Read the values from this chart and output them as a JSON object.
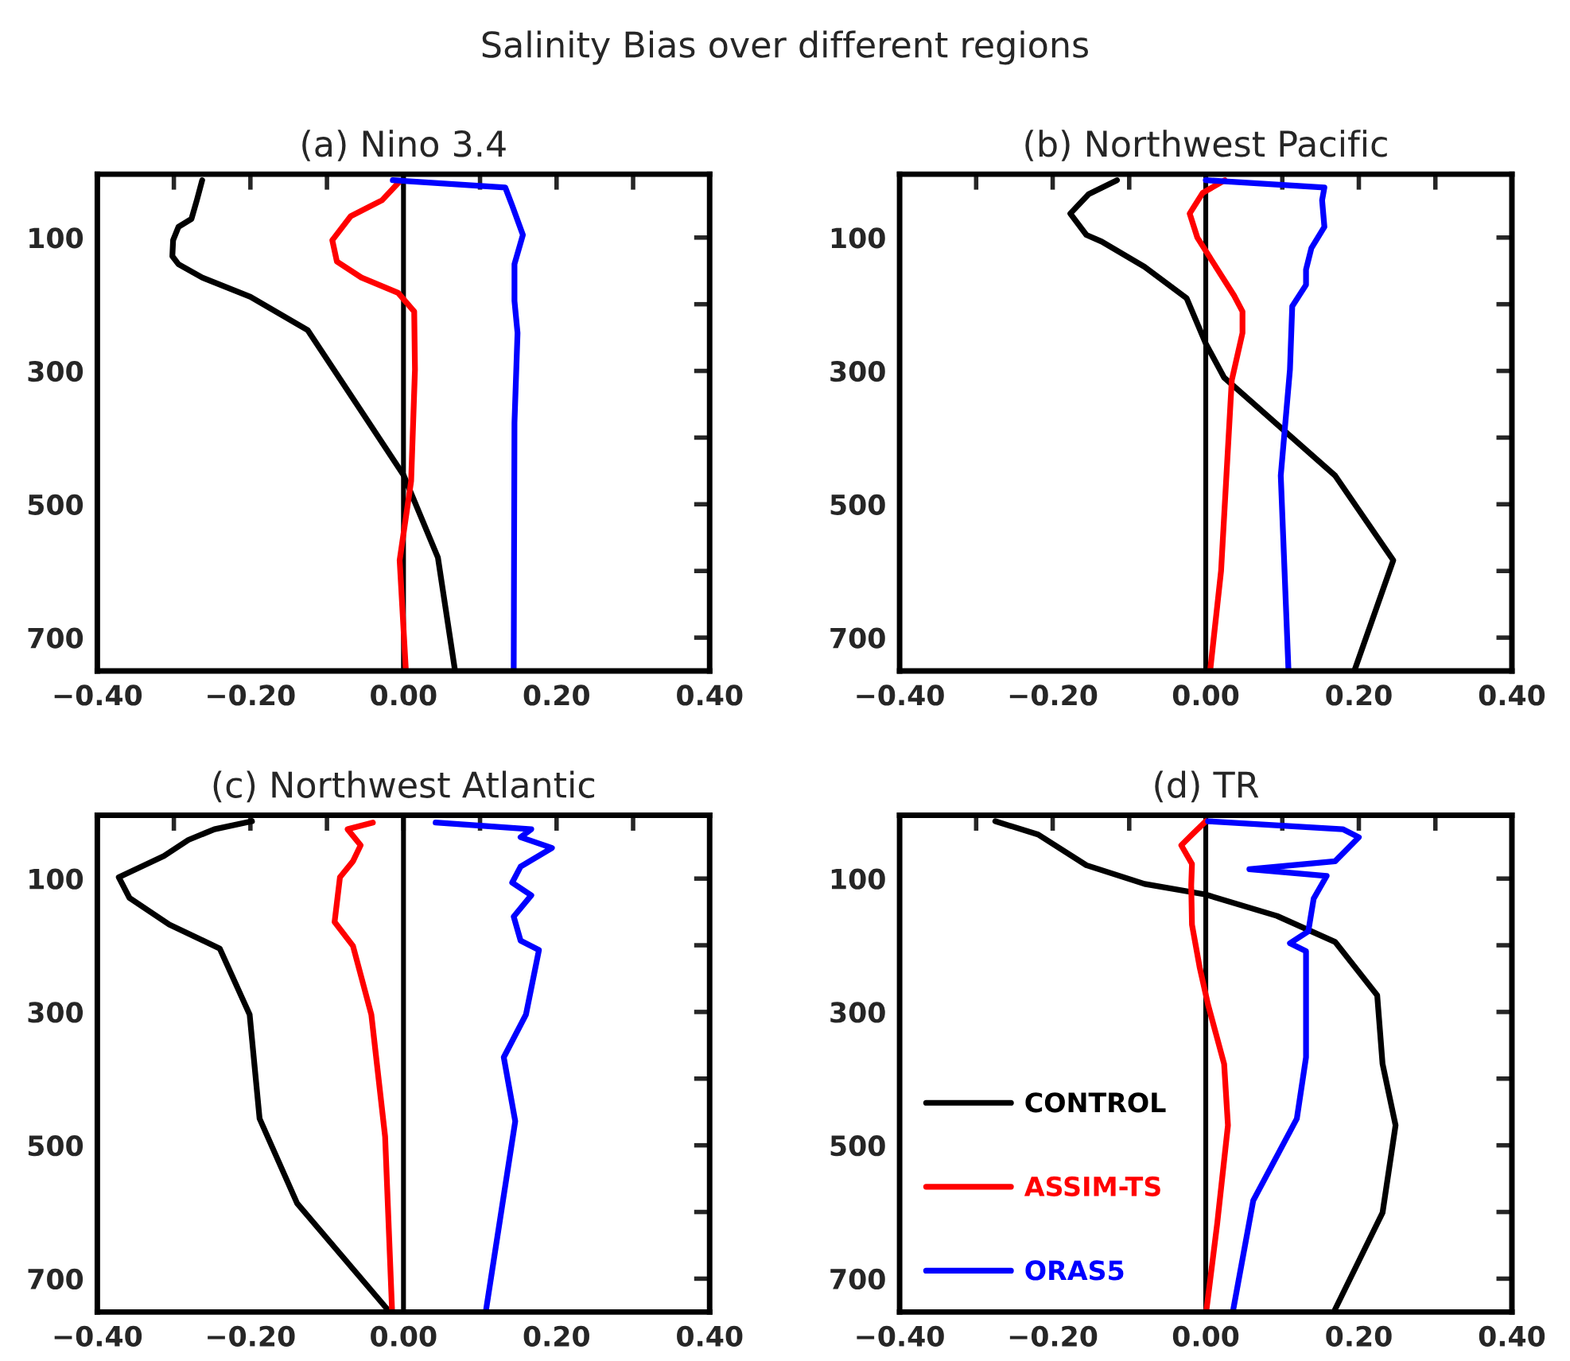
{
  "chart_data": [
    {
      "type": "line",
      "title": "(a) Nino 3.4",
      "orientation": "horizontal",
      "annotations": [
        "Salinity Bias over different regions"
      ],
      "xlim": [
        -0.4,
        0.4
      ],
      "xticks": [
        {
          "value": -0.4,
          "label": "−0.40"
        },
        {
          "value": -0.3,
          "label": null
        },
        {
          "value": -0.2,
          "label": "−0.20"
        },
        {
          "value": -0.1,
          "label": null
        },
        {
          "value": 0,
          "label": "0.00"
        },
        {
          "value": 0.1,
          "label": null
        },
        {
          "value": 0.2,
          "label": "0.20"
        },
        {
          "value": 0.3,
          "label": null
        },
        {
          "value": 0.4,
          "label": "0.40"
        }
      ],
      "ylim": [
        750,
        5
      ],
      "yticks": [
        100,
        {
          "value": 200,
          "label": null
        },
        300,
        {
          "value": 400,
          "label": null
        },
        500,
        {
          "value": 600,
          "label": null
        },
        700
      ],
      "ref_lines": [
        {
          "axis": "x",
          "value": 0,
          "color": "#000000"
        }
      ],
      "grid": false,
      "legend": false,
      "series": [
        {
          "color": "#000000",
          "x": [
            14,
            44,
            72,
            84,
            104,
            128,
            140,
            160,
            189,
            239,
            456,
            580,
            747
          ],
          "values": [
            -0.263,
            -0.27,
            -0.277,
            -0.294,
            -0.301,
            -0.302,
            -0.294,
            -0.263,
            -0.2,
            -0.125,
            0.0,
            0.045,
            0.067
          ]
        },
        {
          "color": "#ff0000",
          "x": [
            17,
            44,
            68,
            104,
            136,
            160,
            183,
            211,
            298,
            465,
            584,
            747
          ],
          "values": [
            -0.006,
            -0.028,
            -0.069,
            -0.093,
            -0.087,
            -0.055,
            -0.007,
            0.014,
            0.015,
            0.01,
            -0.005,
            0.003
          ]
        },
        {
          "color": "#0000ff",
          "x": [
            14,
            25,
            52,
            96,
            140,
            195,
            243,
            378,
            747
          ],
          "values": [
            -0.014,
            0.133,
            0.142,
            0.156,
            0.145,
            0.145,
            0.149,
            0.145,
            0.144
          ]
        }
      ]
    },
    {
      "type": "line",
      "title": "(b) Northwest Pacific",
      "orientation": "horizontal",
      "xlim": [
        -0.4,
        0.4
      ],
      "xticks": [
        {
          "value": -0.4,
          "label": "−0.40"
        },
        {
          "value": -0.3,
          "label": null
        },
        {
          "value": -0.2,
          "label": "−0.20"
        },
        {
          "value": -0.1,
          "label": null
        },
        {
          "value": 0,
          "label": "0.00"
        },
        {
          "value": 0.1,
          "label": null
        },
        {
          "value": 0.2,
          "label": "0.20"
        },
        {
          "value": 0.3,
          "label": null
        },
        {
          "value": 0.4,
          "label": "0.40"
        }
      ],
      "ylim": [
        750,
        5
      ],
      "yticks": [
        100,
        {
          "value": 200,
          "label": null
        },
        300,
        {
          "value": 400,
          "label": null
        },
        500,
        {
          "value": 600,
          "label": null
        },
        700
      ],
      "ref_lines": [
        {
          "axis": "x",
          "value": 0,
          "color": "#000000"
        }
      ],
      "grid": false,
      "legend": false,
      "series": [
        {
          "color": "#000000",
          "x": [
            14,
            35,
            64,
            96,
            106,
            144,
            191,
            259,
            310,
            457,
            584,
            747
          ],
          "values": [
            -0.116,
            -0.153,
            -0.177,
            -0.156,
            -0.136,
            -0.08,
            -0.025,
            0.0,
            0.024,
            0.169,
            0.245,
            0.195
          ]
        },
        {
          "color": "#ff0000",
          "x": [
            14,
            33,
            64,
            100,
            187,
            211,
            243,
            314,
            600,
            747
          ],
          "values": [
            0.025,
            -0.004,
            -0.021,
            -0.011,
            0.037,
            0.048,
            0.048,
            0.034,
            0.02,
            0.006
          ]
        },
        {
          "color": "#0000ff",
          "x": [
            14,
            25,
            44,
            84,
            116,
            148,
            171,
            203,
            298,
            457,
            747
          ],
          "values": [
            0.0,
            0.155,
            0.152,
            0.155,
            0.138,
            0.131,
            0.131,
            0.113,
            0.11,
            0.098,
            0.108
          ]
        }
      ]
    },
    {
      "type": "line",
      "title": "(c) Northwest Atlantic",
      "orientation": "horizontal",
      "xlim": [
        -0.4,
        0.4
      ],
      "xticks": [
        {
          "value": -0.4,
          "label": "−0.40"
        },
        {
          "value": -0.3,
          "label": null
        },
        {
          "value": -0.2,
          "label": "−0.20"
        },
        {
          "value": -0.1,
          "label": null
        },
        {
          "value": 0,
          "label": "0.00"
        },
        {
          "value": 0.1,
          "label": null
        },
        {
          "value": 0.2,
          "label": "0.20"
        },
        {
          "value": 0.3,
          "label": null
        },
        {
          "value": 0.4,
          "label": "0.40"
        }
      ],
      "ylim": [
        750,
        5
      ],
      "yticks": [
        100,
        {
          "value": 200,
          "label": null
        },
        300,
        {
          "value": 400,
          "label": null
        },
        500,
        {
          "value": 600,
          "label": null
        },
        700
      ],
      "ref_lines": [
        {
          "axis": "x",
          "value": 0,
          "color": "#000000"
        }
      ],
      "grid": false,
      "legend": false,
      "series": [
        {
          "color": "#000000",
          "x": [
            14,
            26,
            42,
            66,
            98,
            129,
            169,
            205,
            304,
            460,
            587,
            746
          ],
          "values": [
            -0.198,
            -0.247,
            -0.281,
            -0.313,
            -0.372,
            -0.358,
            -0.306,
            -0.24,
            -0.201,
            -0.188,
            -0.139,
            -0.021
          ]
        },
        {
          "color": "#ff0000",
          "x": [
            16,
            26,
            50,
            74,
            98,
            165,
            201,
            304,
            487,
            746
          ],
          "values": [
            -0.04,
            -0.073,
            -0.056,
            -0.066,
            -0.083,
            -0.09,
            -0.066,
            -0.042,
            -0.024,
            -0.015
          ]
        },
        {
          "color": "#0000ff",
          "x": [
            16,
            26,
            38,
            54,
            82,
            106,
            125,
            157,
            193,
            207,
            304,
            368,
            464,
            746
          ],
          "values": [
            0.042,
            0.167,
            0.153,
            0.194,
            0.153,
            0.142,
            0.167,
            0.144,
            0.153,
            0.177,
            0.16,
            0.131,
            0.146,
            0.108
          ]
        }
      ]
    },
    {
      "type": "line",
      "title": "(d) TR",
      "orientation": "horizontal",
      "xlim": [
        -0.4,
        0.4
      ],
      "xticks": [
        {
          "value": -0.4,
          "label": "−0.40"
        },
        {
          "value": -0.3,
          "label": null
        },
        {
          "value": -0.2,
          "label": "−0.20"
        },
        {
          "value": -0.1,
          "label": null
        },
        {
          "value": 0,
          "label": "0.00"
        },
        {
          "value": 0.1,
          "label": null
        },
        {
          "value": 0.2,
          "label": "0.20"
        },
        {
          "value": 0.3,
          "label": null
        },
        {
          "value": 0.4,
          "label": "0.40"
        }
      ],
      "ylim": [
        750,
        5
      ],
      "yticks": [
        100,
        {
          "value": 200,
          "label": null
        },
        300,
        {
          "value": 400,
          "label": null
        },
        500,
        {
          "value": 600,
          "label": null
        },
        700
      ],
      "ref_lines": [
        {
          "axis": "x",
          "value": 0,
          "color": "#000000"
        }
      ],
      "grid": false,
      "legend": "lower left",
      "series": [
        {
          "name": "CONTROL",
          "color": "#000000",
          "x": [
            14,
            34,
            80,
            108,
            124,
            156,
            195,
            275,
            378,
            470,
            601,
            746
          ],
          "values": [
            -0.275,
            -0.219,
            -0.156,
            -0.08,
            0.0,
            0.093,
            0.169,
            0.224,
            0.231,
            0.248,
            0.231,
            0.169
          ]
        },
        {
          "name": "ASSIM-TS",
          "color": "#ff0000",
          "x": [
            14,
            34,
            50,
            78,
            110,
            169,
            233,
            289,
            378,
            470,
            617,
            746
          ],
          "values": [
            0.0,
            -0.018,
            -0.032,
            -0.018,
            -0.019,
            -0.018,
            -0.008,
            0.003,
            0.024,
            0.029,
            0.015,
            0.001
          ]
        },
        {
          "name": "ORAS5",
          "color": "#0000ff",
          "x": [
            14,
            26,
            38,
            74,
            86,
            96,
            130,
            179,
            197,
            209,
            368,
            460,
            583,
            746
          ],
          "values": [
            0.003,
            0.179,
            0.2,
            0.169,
            0.057,
            0.158,
            0.141,
            0.134,
            0.11,
            0.131,
            0.131,
            0.119,
            0.062,
            0.036
          ]
        }
      ]
    }
  ]
}
